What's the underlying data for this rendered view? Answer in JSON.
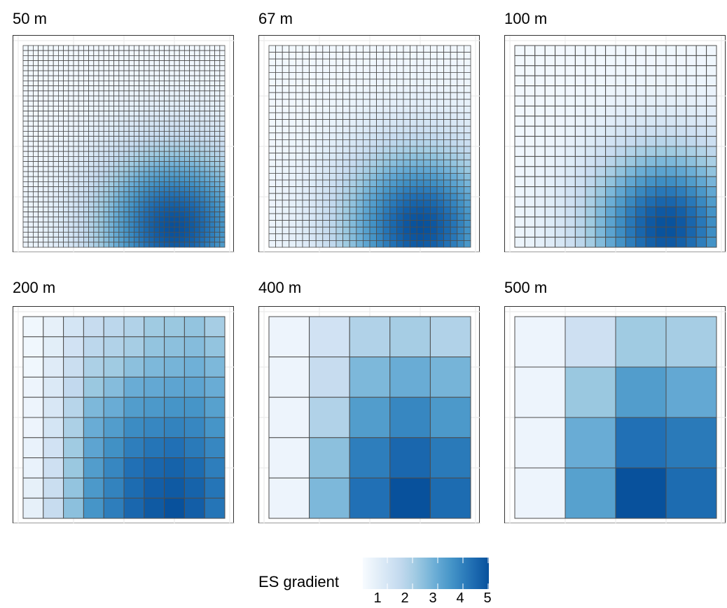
{
  "chart_data": {
    "type": "heatmap",
    "facets": [
      {
        "label": "50 m",
        "n": 40
      },
      {
        "label": "67 m",
        "n": 30
      },
      {
        "label": "100 m",
        "n": 20
      },
      {
        "label": "200 m",
        "n": 10,
        "values": [
          [
            0.2,
            0.5,
            1.0,
            1.4,
            1.6,
            1.8,
            2.1,
            2.2,
            2.3,
            2.0
          ],
          [
            0.2,
            0.6,
            1.1,
            1.6,
            1.8,
            2.0,
            2.3,
            2.4,
            2.5,
            2.3
          ],
          [
            0.2,
            0.7,
            1.3,
            1.9,
            2.1,
            2.4,
            2.6,
            2.7,
            2.8,
            2.6
          ],
          [
            0.3,
            0.8,
            1.5,
            2.2,
            2.5,
            2.9,
            3.0,
            3.1,
            3.1,
            2.9
          ],
          [
            0.3,
            0.9,
            1.7,
            2.6,
            2.9,
            3.3,
            3.4,
            3.5,
            3.5,
            3.2
          ],
          [
            0.3,
            1.0,
            1.9,
            2.9,
            3.3,
            3.7,
            3.8,
            3.9,
            3.8,
            3.5
          ],
          [
            0.4,
            1.1,
            2.1,
            3.1,
            3.6,
            4.0,
            4.2,
            4.3,
            4.1,
            3.8
          ],
          [
            0.4,
            1.2,
            2.2,
            3.3,
            3.8,
            4.3,
            4.5,
            4.6,
            4.4,
            4.0
          ],
          [
            0.5,
            1.3,
            2.3,
            3.4,
            3.9,
            4.4,
            4.7,
            4.8,
            4.6,
            4.2
          ],
          [
            0.5,
            1.4,
            2.4,
            3.5,
            4.0,
            4.5,
            4.8,
            5.0,
            4.7,
            4.2
          ]
        ]
      },
      {
        "label": "400 m",
        "n": 5,
        "values": [
          [
            0.3,
            1.1,
            1.8,
            2.0,
            1.8
          ],
          [
            0.3,
            1.4,
            2.6,
            2.9,
            2.7
          ],
          [
            0.3,
            1.8,
            3.3,
            3.8,
            3.4
          ],
          [
            0.3,
            2.4,
            4.0,
            4.5,
            4.1
          ],
          [
            0.3,
            2.6,
            4.3,
            5.0,
            4.4
          ]
        ]
      },
      {
        "label": "500 m",
        "n": 4,
        "values": [
          [
            0.3,
            1.2,
            2.1,
            2.0
          ],
          [
            0.3,
            2.2,
            3.3,
            3.0
          ],
          [
            0.3,
            2.9,
            4.3,
            4.1
          ],
          [
            0.3,
            3.2,
            5.0,
            4.4
          ]
        ]
      }
    ],
    "x_range": [
      0,
      2000
    ],
    "y_range": [
      0,
      2000
    ],
    "grid": true,
    "colorbar": {
      "title": "ES gradient",
      "ticks": [
        "1",
        "2",
        "3",
        "4",
        "5"
      ],
      "range": [
        0,
        5
      ],
      "low_color": "#f7fbff",
      "high_color": "#08306b",
      "palette": [
        "#f7fbff",
        "#deebf7",
        "#c6dbef",
        "#9ecae1",
        "#6baed6",
        "#4292c6",
        "#2171b5",
        "#08519c"
      ],
      "placement": "bottom"
    }
  }
}
